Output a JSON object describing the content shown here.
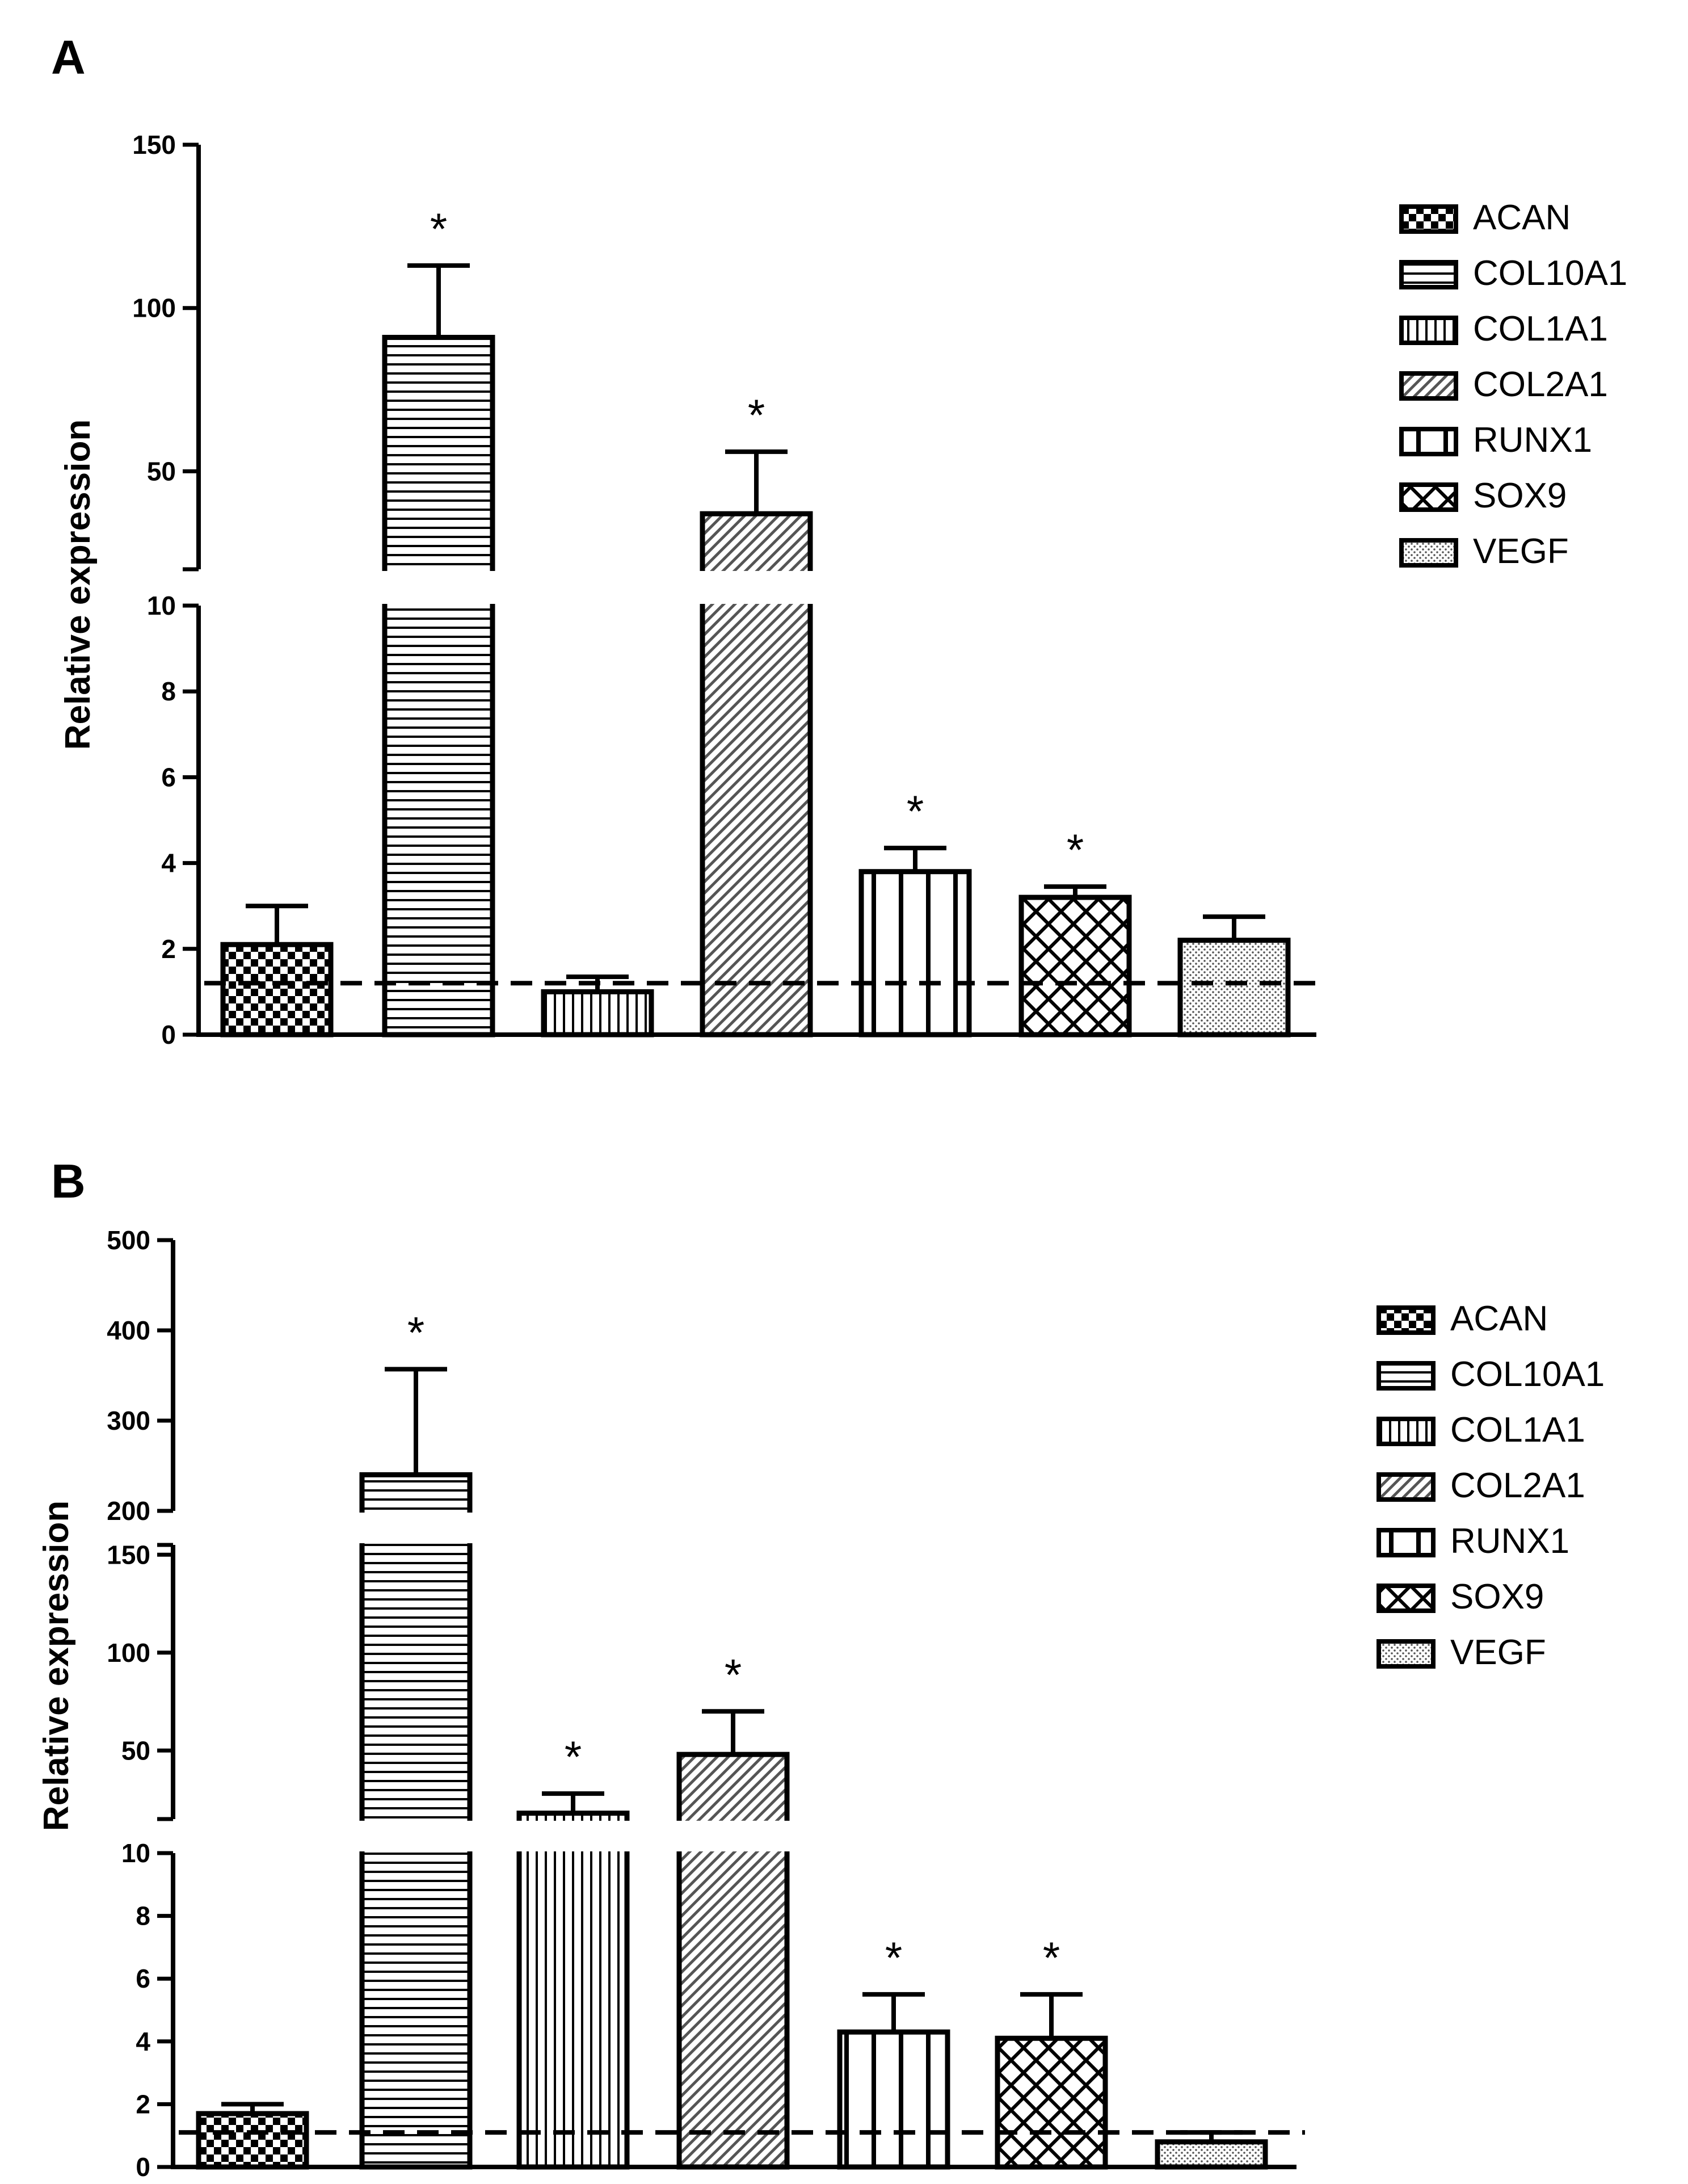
{
  "colors": {
    "ink": "#000000",
    "background": "#ffffff"
  },
  "legend": [
    "ACAN",
    "COL10A1",
    "COL1A1",
    "COL2A1",
    "RUNX1",
    "SOX9",
    "VEGF"
  ],
  "chart_data": [
    {
      "panel": "A",
      "type": "bar",
      "ylabel": "Relative expression",
      "broken_axis": true,
      "segments": [
        {
          "range": [
            0,
            10
          ],
          "ticks": [
            "0",
            "2",
            "4",
            "6",
            "8",
            "10"
          ]
        },
        {
          "range": [
            20,
            150
          ],
          "ticks": [
            "50",
            "100",
            "150"
          ]
        }
      ],
      "reference_line": 1.2,
      "categories": [
        "ACAN",
        "COL10A1",
        "COL1A1",
        "COL2A1",
        "RUNX1",
        "SOX9",
        "VEGF"
      ],
      "values": [
        2.1,
        91,
        1.0,
        37,
        3.8,
        3.2,
        2.2
      ],
      "errors": [
        0.9,
        22,
        0.35,
        19,
        0.55,
        0.25,
        0.55
      ],
      "significance": [
        "",
        "*",
        "",
        "*",
        "*",
        "*",
        ""
      ],
      "legend_position": "right"
    },
    {
      "panel": "B",
      "type": "bar",
      "ylabel": "Relative expression",
      "broken_axis": true,
      "segments": [
        {
          "range": [
            0,
            10
          ],
          "ticks": [
            "0",
            "2",
            "4",
            "6",
            "8",
            "10"
          ]
        },
        {
          "range": [
            15,
            155
          ],
          "ticks": [
            "50",
            "100",
            "150"
          ]
        },
        {
          "range": [
            200,
            500
          ],
          "ticks": [
            "200",
            "300",
            "400",
            "500"
          ]
        }
      ],
      "reference_line": 1.1,
      "categories": [
        "ACAN",
        "COL10A1",
        "COL1A1",
        "COL2A1",
        "RUNX1",
        "SOX9",
        "VEGF"
      ],
      "values": [
        1.7,
        240,
        18,
        48,
        4.3,
        4.1,
        0.8
      ],
      "errors": [
        0.3,
        117,
        10,
        22,
        1.2,
        1.4,
        0.3
      ],
      "significance": [
        "",
        "*",
        "*",
        "*",
        "*",
        "*",
        ""
      ],
      "legend_position": "right"
    }
  ]
}
